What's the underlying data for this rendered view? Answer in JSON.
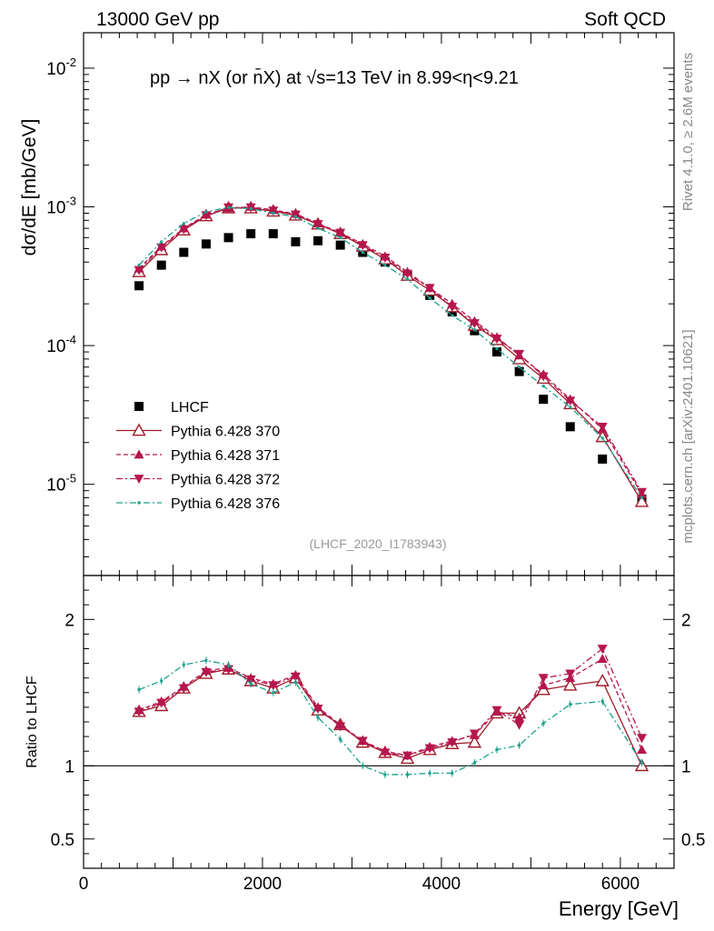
{
  "header": {
    "left": "13000 GeV pp",
    "right": "Soft QCD",
    "title": "pp → nX (or n̄X) at √s=13 TeV in 8.99<η<9.21"
  },
  "side_labels": {
    "top": "Rivet 4.1.0, ≥ 2.6M events",
    "bottom": "mcplots.cern.ch [arXiv:2401.10621]"
  },
  "watermark": "(LHCF_2020_I1783943)",
  "chart_data": [
    {
      "type": "scatter",
      "panel": "main",
      "ylabel": "dσ/dE [mb/GeV]",
      "yscale": "log",
      "ylim": [
        2.2e-06,
        0.018
      ],
      "xlim": [
        0,
        6600
      ],
      "ytick_labels": [
        "10^-5",
        "10^-4",
        "10^-3",
        "10^-2"
      ],
      "legend_position": "middle-left",
      "x": [
        620,
        870,
        1120,
        1370,
        1620,
        1870,
        2120,
        2370,
        2620,
        2870,
        3120,
        3370,
        3620,
        3870,
        4120,
        4370,
        4620,
        4870,
        5140,
        5440,
        5800,
        6240
      ],
      "series": [
        {
          "name": "LHCF",
          "style": "marker-square",
          "color": "#000000",
          "values": [
            0.00027,
            0.00038,
            0.00047,
            0.00054,
            0.0006,
            0.00064,
            0.00064,
            0.00056,
            0.00057,
            0.00053,
            0.00047,
            0.0004,
            0.00032,
            0.00023,
            0.000175,
            0.000128,
            9e-05,
            6.5e-05,
            4.1e-05,
            2.6e-05,
            1.52e-05,
            7.8e-06
          ]
        },
        {
          "name": "Pythia 6.428 370",
          "style": "solid-open-triangle",
          "color": "#a01c2a",
          "values": [
            0.00034,
            0.00049,
            0.00068,
            0.00086,
            0.00098,
            0.00098,
            0.00093,
            0.00087,
            0.00075,
            0.00064,
            0.00052,
            0.00042,
            0.00032,
            0.00025,
            0.00019,
            0.00014,
            0.00011,
            8e-05,
            5.8e-05,
            3.8e-05,
            2.2e-05,
            7.5e-06
          ]
        },
        {
          "name": "Pythia 6.428 371",
          "style": "dashed-filled-triangle",
          "color": "#b5174d",
          "values": [
            0.00036,
            0.00052,
            0.0007,
            0.00088,
            0.00098,
            0.001,
            0.00095,
            0.00089,
            0.00076,
            0.00065,
            0.00054,
            0.00044,
            0.00034,
            0.00026,
            0.0002,
            0.00015,
            0.000115,
            8.5e-05,
            6.2e-05,
            4.1e-05,
            2.5e-05,
            8.5e-06
          ]
        },
        {
          "name": "Pythia 6.428 372",
          "style": "dashdot-down-triangle",
          "color": "#b5174d",
          "values": [
            0.00035,
            0.00051,
            0.00069,
            0.00087,
            0.00099,
            0.00099,
            0.00094,
            0.00088,
            0.00075,
            0.00065,
            0.00053,
            0.00043,
            0.00033,
            0.00026,
            0.00019,
            0.000145,
            0.000112,
            8.7e-05,
            6e-05,
            4e-05,
            2.6e-05,
            8.8e-06
          ]
        },
        {
          "name": "Pythia 6.428 376",
          "style": "dashdot-teal",
          "color": "#1aa08c",
          "values": [
            0.00038,
            0.00056,
            0.00076,
            0.00092,
            0.00099,
            0.00097,
            0.0009,
            0.00085,
            0.0007,
            0.0006,
            0.00047,
            0.00038,
            0.0003,
            0.00022,
            0.000165,
            0.00013,
            9.5e-05,
            7e-05,
            5.1e-05,
            3.6e-05,
            2.15e-05,
            8e-06
          ]
        }
      ]
    },
    {
      "type": "line",
      "panel": "ratio",
      "ylabel": "Ratio to LHCF",
      "xlabel": "Energy [GeV]",
      "yscale": "linear",
      "ylim": [
        0.3,
        2.3
      ],
      "xlim": [
        0,
        6600
      ],
      "ytick_labels": [
        "0.5",
        "1",
        "2"
      ],
      "xtick_labels": [
        "0",
        "2000",
        "4000",
        "6000"
      ],
      "reference_line": 1,
      "x": [
        620,
        870,
        1120,
        1370,
        1620,
        1870,
        2120,
        2370,
        2620,
        2870,
        3120,
        3370,
        3620,
        3870,
        4120,
        4370,
        4620,
        4870,
        5140,
        5440,
        5800,
        6240
      ],
      "series": [
        {
          "name": "Pythia 6.428 370",
          "color": "#a01c2a",
          "values": [
            1.37,
            1.41,
            1.53,
            1.63,
            1.66,
            1.58,
            1.53,
            1.6,
            1.38,
            1.28,
            1.16,
            1.09,
            1.05,
            1.11,
            1.15,
            1.16,
            1.36,
            1.36,
            1.52,
            1.55,
            1.58,
            1.0
          ]
        },
        {
          "name": "Pythia 6.428 371",
          "color": "#b5174d",
          "values": [
            1.38,
            1.44,
            1.54,
            1.65,
            1.67,
            1.6,
            1.56,
            1.62,
            1.4,
            1.28,
            1.17,
            1.1,
            1.07,
            1.13,
            1.17,
            1.21,
            1.37,
            1.33,
            1.55,
            1.6,
            1.73,
            1.11
          ]
        },
        {
          "name": "Pythia 6.428 372",
          "color": "#b5174d",
          "values": [
            1.37,
            1.43,
            1.53,
            1.64,
            1.66,
            1.59,
            1.55,
            1.61,
            1.39,
            1.27,
            1.17,
            1.09,
            1.07,
            1.12,
            1.16,
            1.22,
            1.38,
            1.28,
            1.6,
            1.63,
            1.8,
            1.19
          ]
        },
        {
          "name": "Pythia 6.428 376",
          "color": "#1aa08c",
          "values": [
            1.52,
            1.58,
            1.69,
            1.72,
            1.69,
            1.56,
            1.5,
            1.57,
            1.33,
            1.18,
            1.0,
            0.94,
            0.94,
            0.95,
            0.95,
            1.02,
            1.11,
            1.14,
            1.29,
            1.42,
            1.44,
            1.02
          ]
        }
      ]
    }
  ]
}
